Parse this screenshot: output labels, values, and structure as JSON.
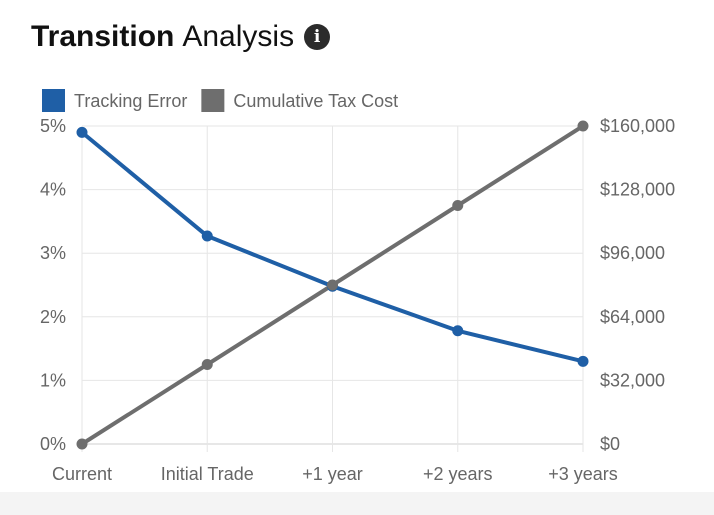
{
  "header": {
    "title_bold": "Transition",
    "title_rest": "Analysis",
    "info_icon": "info-icon"
  },
  "chart_data": {
    "type": "line",
    "categories": [
      "Current",
      "Initial Trade",
      "+1 year",
      "+2 years",
      "+3 years"
    ],
    "series": [
      {
        "name": "Tracking Error",
        "axis": "left",
        "color": "#1f5fa6",
        "values": [
          4.9,
          3.27,
          2.48,
          1.78,
          1.3
        ]
      },
      {
        "name": "Cumulative Tax Cost",
        "axis": "right",
        "color": "#6e6e6e",
        "values": [
          0,
          40000,
          80000,
          120000,
          160000
        ]
      }
    ],
    "y_left": {
      "min": 0,
      "max": 5,
      "ticks": [
        "0%",
        "1%",
        "2%",
        "3%",
        "4%",
        "5%"
      ]
    },
    "y_right": {
      "min": 0,
      "max": 160000,
      "ticks": [
        "$0",
        "$32,000",
        "$64,000",
        "$96,000",
        "$128,000",
        "$160,000"
      ]
    },
    "grid": true,
    "legend": "top-left"
  }
}
